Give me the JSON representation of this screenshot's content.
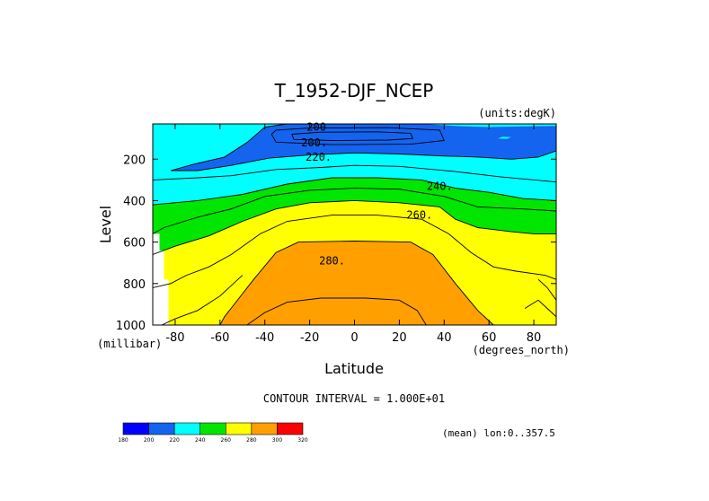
{
  "chart_data": {
    "type": "heatmap",
    "subtype": "filled-contour",
    "title": "T_1952-DJF_NCEP",
    "units_label": "(units:degK)",
    "xlabel": "Latitude",
    "x_unit_label": "(degrees_north)",
    "ylabel": "Level",
    "y_unit_label": "(millibar)",
    "xlim": [
      -90,
      90
    ],
    "ylim": [
      1000,
      30
    ],
    "x_ticks": [
      -80,
      -60,
      -40,
      -20,
      0,
      20,
      40,
      60,
      80
    ],
    "x_tick_labels": [
      "-80",
      "-60",
      "-40",
      "-20",
      "0",
      "20",
      "40",
      "60",
      "80"
    ],
    "y_ticks": [
      200,
      400,
      600,
      800,
      1000
    ],
    "y_tick_labels": [
      "200",
      "400",
      "600",
      "800",
      "1000"
    ],
    "contour_interval_text": "CONTOUR INTERVAL = 1.000E+01",
    "mean_text": "(mean) lon:0..357.5",
    "contour_labels": [
      {
        "text": "200",
        "lat": -17,
        "level": 45
      },
      {
        "text": "200.",
        "lat": -18,
        "level": 120
      },
      {
        "text": "220.",
        "lat": -16,
        "level": 190
      },
      {
        "text": "240.",
        "lat": 38,
        "level": 330
      },
      {
        "text": "260.",
        "lat": 29,
        "level": 470
      },
      {
        "text": "280.",
        "lat": -10,
        "level": 690
      }
    ],
    "levels": [
      180,
      200,
      220,
      240,
      260,
      280,
      300,
      320
    ],
    "colorbar": {
      "tick_labels": [
        "180",
        "200",
        "220",
        "240",
        "260",
        "280",
        "300",
        "320"
      ],
      "colors": [
        "#0000ff",
        "#1464f0",
        "#00ffff",
        "#00e600",
        "#ffff00",
        "#ffa000",
        "#ff0000"
      ]
    },
    "regions": [
      {
        "value_min": 180,
        "value_max": 200,
        "color": "#0000ff",
        "points": [
          [
            -28,
            80
          ],
          [
            -15,
            70
          ],
          [
            10,
            68
          ],
          [
            25,
            75
          ],
          [
            26,
            100
          ],
          [
            15,
            108
          ],
          [
            -10,
            110
          ],
          [
            -27,
            105
          ]
        ]
      },
      {
        "value_min": 200,
        "value_max": 220,
        "color": "#1464f0",
        "points": [
          [
            -82,
            255
          ],
          [
            -72,
            225
          ],
          [
            -58,
            190
          ],
          [
            -48,
            120
          ],
          [
            -40,
            45
          ],
          [
            -30,
            30
          ],
          [
            30,
            30
          ],
          [
            45,
            40
          ],
          [
            60,
            45
          ],
          [
            75,
            42
          ],
          [
            90,
            40
          ],
          [
            90,
            160
          ],
          [
            82,
            190
          ],
          [
            70,
            200
          ],
          [
            55,
            190
          ],
          [
            40,
            185
          ],
          [
            20,
            175
          ],
          [
            0,
            170
          ],
          [
            -20,
            180
          ],
          [
            -38,
            195
          ],
          [
            -55,
            230
          ],
          [
            -70,
            255
          ]
        ]
      },
      {
        "value_min": 220,
        "value_max": 240,
        "color": "#00ffff",
        "points": [
          [
            -90,
            30
          ],
          [
            -40,
            30
          ],
          [
            -48,
            120
          ],
          [
            -58,
            190
          ],
          [
            -72,
            225
          ],
          [
            -82,
            255
          ],
          [
            -70,
            255
          ],
          [
            -55,
            230
          ],
          [
            -38,
            195
          ],
          [
            -20,
            180
          ],
          [
            0,
            170
          ],
          [
            20,
            175
          ],
          [
            40,
            185
          ],
          [
            55,
            190
          ],
          [
            70,
            200
          ],
          [
            82,
            190
          ],
          [
            90,
            160
          ],
          [
            90,
            400
          ],
          [
            75,
            390
          ],
          [
            60,
            360
          ],
          [
            45,
            340
          ],
          [
            30,
            300
          ],
          [
            10,
            290
          ],
          [
            -10,
            290
          ],
          [
            -30,
            320
          ],
          [
            -50,
            370
          ],
          [
            -70,
            400
          ],
          [
            -90,
            420
          ]
        ]
      },
      {
        "value_min": 240,
        "value_max": 260,
        "color": "#00e600",
        "points": [
          [
            -90,
            420
          ],
          [
            -70,
            400
          ],
          [
            -50,
            370
          ],
          [
            -30,
            320
          ],
          [
            -10,
            290
          ],
          [
            10,
            290
          ],
          [
            30,
            300
          ],
          [
            45,
            340
          ],
          [
            60,
            360
          ],
          [
            75,
            390
          ],
          [
            90,
            400
          ],
          [
            90,
            560
          ],
          [
            80,
            560
          ],
          [
            70,
            550
          ],
          [
            55,
            530
          ],
          [
            45,
            490
          ],
          [
            38,
            430
          ],
          [
            20,
            410
          ],
          [
            0,
            400
          ],
          [
            -20,
            410
          ],
          [
            -35,
            440
          ],
          [
            -50,
            500
          ],
          [
            -65,
            570
          ],
          [
            -80,
            620
          ],
          [
            -90,
            660
          ]
        ]
      },
      {
        "value_min": 260,
        "value_max": 280,
        "color": "#ffff00",
        "points": [
          [
            -90,
            660
          ],
          [
            -80,
            620
          ],
          [
            -65,
            570
          ],
          [
            -50,
            500
          ],
          [
            -35,
            440
          ],
          [
            -20,
            410
          ],
          [
            0,
            400
          ],
          [
            20,
            410
          ],
          [
            38,
            430
          ],
          [
            45,
            490
          ],
          [
            55,
            530
          ],
          [
            70,
            550
          ],
          [
            80,
            560
          ],
          [
            90,
            560
          ],
          [
            90,
            1000
          ],
          [
            62,
            1000
          ],
          [
            55,
            930
          ],
          [
            45,
            800
          ],
          [
            35,
            660
          ],
          [
            25,
            600
          ],
          [
            0,
            595
          ],
          [
            -25,
            600
          ],
          [
            -35,
            650
          ],
          [
            -45,
            780
          ],
          [
            -58,
            960
          ],
          [
            -60,
            1000
          ],
          [
            -90,
            1000
          ]
        ]
      },
      {
        "value_min": 280,
        "value_max": 300,
        "color": "#ffa000",
        "points": [
          [
            -60,
            1000
          ],
          [
            -58,
            960
          ],
          [
            -45,
            780
          ],
          [
            -35,
            650
          ],
          [
            -25,
            600
          ],
          [
            0,
            595
          ],
          [
            25,
            600
          ],
          [
            35,
            660
          ],
          [
            45,
            800
          ],
          [
            55,
            930
          ],
          [
            62,
            1000
          ]
        ]
      },
      {
        "value_min": 220,
        "value_max": 240,
        "color": "#00ffff",
        "points": [
          [
            64,
            100
          ],
          [
            66,
            92
          ],
          [
            70,
            94
          ],
          [
            68,
            102
          ]
        ]
      }
    ],
    "contour_lines": [
      [
        [
          -28,
          80
        ],
        [
          -15,
          70
        ],
        [
          10,
          68
        ],
        [
          25,
          75
        ],
        [
          26,
          100
        ],
        [
          15,
          108
        ],
        [
          -10,
          110
        ],
        [
          -27,
          105
        ],
        [
          -28,
          80
        ]
      ],
      [
        [
          -35,
          60
        ],
        [
          -20,
          50
        ],
        [
          15,
          48
        ],
        [
          38,
          60
        ],
        [
          40,
          110
        ],
        [
          25,
          128
        ],
        [
          -10,
          130
        ],
        [
          -35,
          118
        ],
        [
          -37,
          80
        ],
        [
          -35,
          60
        ]
      ],
      [
        [
          -82,
          255
        ],
        [
          -72,
          225
        ],
        [
          -58,
          190
        ],
        [
          -48,
          120
        ],
        [
          -40,
          45
        ],
        [
          -30,
          30
        ]
      ],
      [
        [
          90,
          160
        ],
        [
          82,
          190
        ],
        [
          70,
          200
        ],
        [
          55,
          190
        ],
        [
          40,
          185
        ],
        [
          20,
          175
        ],
        [
          0,
          170
        ],
        [
          -20,
          180
        ],
        [
          -38,
          195
        ],
        [
          -55,
          230
        ],
        [
          -70,
          255
        ],
        [
          -82,
          255
        ]
      ],
      [
        [
          -90,
          420
        ],
        [
          -70,
          400
        ],
        [
          -50,
          370
        ],
        [
          -30,
          320
        ],
        [
          -10,
          290
        ],
        [
          10,
          290
        ],
        [
          30,
          300
        ],
        [
          45,
          340
        ],
        [
          60,
          360
        ],
        [
          75,
          390
        ],
        [
          90,
          400
        ]
      ],
      [
        [
          -90,
          660
        ],
        [
          -80,
          620
        ],
        [
          -65,
          570
        ],
        [
          -50,
          500
        ],
        [
          -35,
          440
        ],
        [
          -20,
          410
        ],
        [
          0,
          400
        ],
        [
          20,
          410
        ],
        [
          38,
          430
        ],
        [
          45,
          490
        ],
        [
          55,
          530
        ],
        [
          70,
          550
        ],
        [
          80,
          560
        ],
        [
          90,
          560
        ]
      ],
      [
        [
          -60,
          1000
        ],
        [
          -58,
          960
        ],
        [
          -45,
          780
        ],
        [
          -35,
          650
        ],
        [
          -25,
          600
        ],
        [
          0,
          595
        ],
        [
          25,
          600
        ],
        [
          35,
          660
        ],
        [
          45,
          800
        ],
        [
          55,
          930
        ],
        [
          62,
          1000
        ]
      ],
      [
        [
          -48,
          1000
        ],
        [
          -40,
          940
        ],
        [
          -30,
          890
        ],
        [
          -15,
          870
        ],
        [
          5,
          870
        ],
        [
          20,
          880
        ],
        [
          28,
          930
        ],
        [
          32,
          1000
        ]
      ],
      [
        [
          -90,
          560
        ],
        [
          -85,
          530
        ],
        [
          -70,
          480
        ],
        [
          -55,
          440
        ],
        [
          -40,
          380
        ],
        [
          -20,
          350
        ],
        [
          0,
          340
        ],
        [
          20,
          345
        ],
        [
          40,
          380
        ],
        [
          55,
          430
        ],
        [
          75,
          440
        ],
        [
          90,
          450
        ]
      ],
      [
        [
          -90,
          300
        ],
        [
          -70,
          290
        ],
        [
          -55,
          280
        ],
        [
          -35,
          250
        ],
        [
          -15,
          240
        ],
        [
          0,
          230
        ],
        [
          20,
          235
        ],
        [
          45,
          260
        ],
        [
          65,
          285
        ],
        [
          90,
          310
        ]
      ],
      [
        [
          -90,
          820
        ],
        [
          -82,
          800
        ],
        [
          -75,
          760
        ],
        [
          -65,
          720
        ],
        [
          -55,
          660
        ],
        [
          -42,
          560
        ],
        [
          -30,
          500
        ],
        [
          -10,
          470
        ],
        [
          10,
          470
        ],
        [
          30,
          490
        ],
        [
          42,
          560
        ],
        [
          52,
          650
        ],
        [
          62,
          720
        ],
        [
          72,
          740
        ],
        [
          85,
          760
        ],
        [
          90,
          780
        ]
      ],
      [
        [
          -86,
          1000
        ],
        [
          -80,
          970
        ],
        [
          -70,
          930
        ],
        [
          -60,
          860
        ],
        [
          -50,
          760
        ]
      ],
      [
        [
          82,
          780
        ],
        [
          86,
          820
        ],
        [
          90,
          880
        ]
      ],
      [
        [
          76,
          920
        ],
        [
          82,
          880
        ],
        [
          86,
          920
        ],
        [
          90,
          960
        ]
      ]
    ],
    "missing_region_color": "#ffffff",
    "missing_region": [
      [
        -90,
        560
      ],
      [
        -87,
        560
      ],
      [
        -87,
        640
      ],
      [
        -85,
        640
      ],
      [
        -85,
        780
      ],
      [
        -83,
        780
      ],
      [
        -83,
        1000
      ],
      [
        -90,
        1000
      ]
    ]
  }
}
